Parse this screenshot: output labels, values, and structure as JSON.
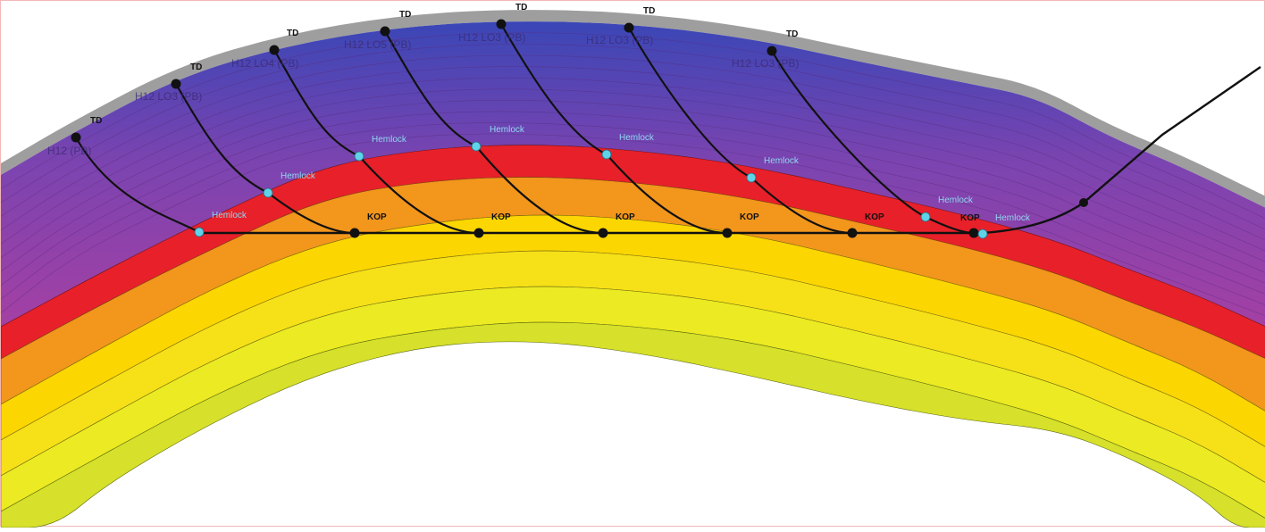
{
  "labels": {
    "td": "TD",
    "kop": "KOP",
    "hemlock": "Hemlock"
  },
  "well_names": [
    "H12 (PB)",
    "H12 LO3 (PB)",
    "H12 LO4 (PB)",
    "H12 LO5 (PB)",
    "H12 LO3 (PB)",
    "H12 LO3 (PB)",
    "H12 LO3 (PB)"
  ],
  "colors": {
    "surface_band": "#9e9e9e",
    "blue_top": "#3848b8",
    "purple": "#9440a8",
    "red_hemlock": "#e8202a",
    "orange": "#f2961c",
    "yellow": "#f9d400",
    "lime": "#d7e02a",
    "markers": "#111111",
    "hemlock_marker": "#5fd3e8"
  }
}
